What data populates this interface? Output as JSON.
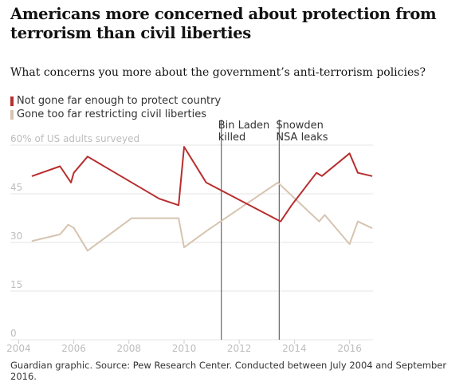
{
  "title": "Americans more concerned about protection from terrorism than civil liberties",
  "subtitle": "What concerns you more about the government’s anti-terrorism policies?",
  "footer": "Guardian graphic. Source: Pew Research Center. Conducted between July 2004 and September 2016.",
  "colors": {
    "series_red": "#b82e2e",
    "series_beige": "#d6c4b0",
    "grid": "#e6e6e6",
    "event_line": "#666666"
  },
  "chart_data": {
    "type": "line",
    "ylabel": "60% of US adults surveyed",
    "ylim": [
      0,
      60
    ],
    "xlim": [
      2003.7,
      2016.85
    ],
    "yticks": [
      {
        "value": 0,
        "label": "0"
      },
      {
        "value": 15,
        "label": "15"
      },
      {
        "value": 30,
        "label": "30"
      },
      {
        "value": 45,
        "label": "45"
      }
    ],
    "xticks": [
      {
        "value": 2004,
        "label": "2004"
      },
      {
        "value": 2006,
        "label": "2006"
      },
      {
        "value": 2008,
        "label": "2008"
      },
      {
        "value": 2010,
        "label": "2010"
      },
      {
        "value": 2012,
        "label": "2012"
      },
      {
        "value": 2014,
        "label": "2014"
      },
      {
        "value": 2016,
        "label": "2016"
      }
    ],
    "series": [
      {
        "name": "Not gone far enough to protect country",
        "color": "#b82e2e",
        "points": [
          [
            2004.5,
            49
          ],
          [
            2005.5,
            52
          ],
          [
            2005.9,
            47
          ],
          [
            2006.0,
            50
          ],
          [
            2006.5,
            55
          ],
          [
            2009.1,
            42
          ],
          [
            2009.8,
            40
          ],
          [
            2010.0,
            58
          ],
          [
            2010.8,
            47
          ],
          [
            2013.5,
            35
          ],
          [
            2013.9,
            40
          ],
          [
            2014.8,
            50
          ],
          [
            2015.0,
            49
          ],
          [
            2016.0,
            56
          ],
          [
            2016.3,
            50
          ],
          [
            2016.8,
            49
          ]
        ]
      },
      {
        "name": "Gone too far restricting civil liberties",
        "color": "#d6c4b0",
        "points": [
          [
            2004.5,
            29
          ],
          [
            2005.5,
            31
          ],
          [
            2005.8,
            34
          ],
          [
            2006.0,
            33
          ],
          [
            2006.5,
            26
          ],
          [
            2008.1,
            36
          ],
          [
            2009.8,
            36
          ],
          [
            2010.0,
            27
          ],
          [
            2010.8,
            32
          ],
          [
            2013.4,
            47
          ],
          [
            2014.9,
            35
          ],
          [
            2015.1,
            37
          ],
          [
            2016.0,
            28
          ],
          [
            2016.3,
            35
          ],
          [
            2016.8,
            33
          ]
        ]
      }
    ],
    "annotations": [
      {
        "x": 2011.35,
        "label_lines": [
          "Bin Laden",
          "killed"
        ]
      },
      {
        "x": 2013.45,
        "label_lines": [
          "Snowden",
          "NSA leaks"
        ]
      }
    ]
  }
}
